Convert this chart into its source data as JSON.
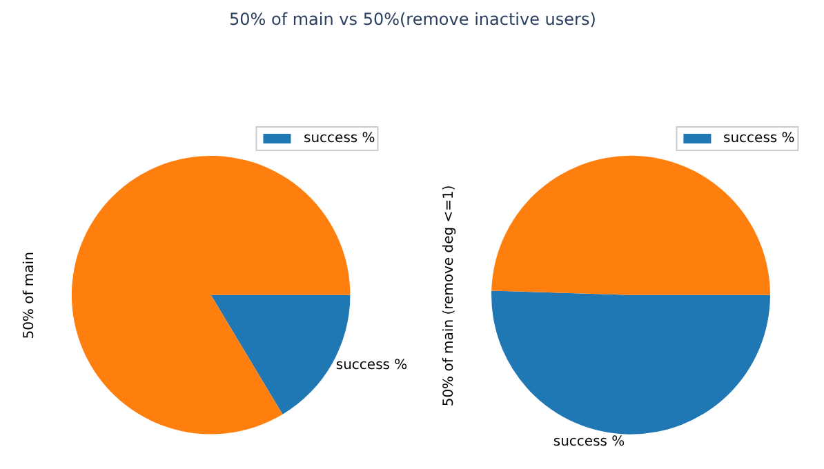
{
  "chart_data": [
    {
      "type": "pie",
      "title": "50% of main vs 50%(remove inactive users)",
      "ylabel": "50% of main",
      "categories": [
        "success %",
        null
      ],
      "values": [
        16.4,
        83.6
      ],
      "colors": [
        "#1f77b4",
        "#ff7f0e"
      ],
      "legend": "top right"
    },
    {
      "type": "pie",
      "ylabel": "50% of main (remove deg <=1)",
      "categories": [
        "success %",
        null
      ],
      "values": [
        50.5,
        49.5
      ],
      "colors": [
        "#1f77b4",
        "#ff7f0e"
      ],
      "legend": "top right"
    }
  ]
}
